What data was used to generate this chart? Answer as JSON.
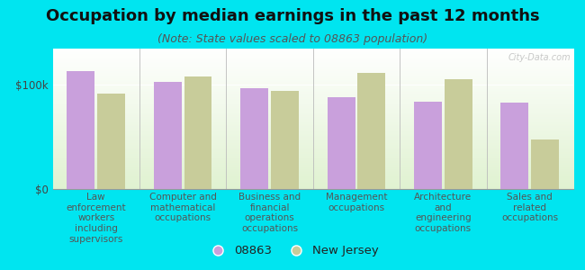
{
  "title": "Occupation by median earnings in the past 12 months",
  "subtitle": "(Note: State values scaled to 08863 population)",
  "categories": [
    "Law\nenforcement\nworkers\nincluding\nsupervisors",
    "Computer and\nmathematical\noccupations",
    "Business and\nfinancial\noperations\noccupations",
    "Management\noccupations",
    "Architecture\nand\nengineering\noccupations",
    "Sales and\nrelated\noccupations"
  ],
  "values_08863": [
    113000,
    103000,
    97000,
    88000,
    84000,
    83000
  ],
  "values_nj": [
    92000,
    108000,
    94000,
    112000,
    106000,
    48000
  ],
  "color_08863": "#c9a0dc",
  "color_nj": "#c8cc9a",
  "background_outer": "#00e5f0",
  "ytick_labels": [
    "$0",
    "$100k"
  ],
  "ytick_values": [
    0,
    100000
  ],
  "ylim": [
    0,
    135000
  ],
  "legend_label_08863": "08863",
  "legend_label_nj": "New Jersey",
  "watermark": "City-Data.com",
  "title_fontsize": 13,
  "subtitle_fontsize": 9,
  "tick_fontsize": 8.5,
  "legend_fontsize": 9.5,
  "cat_fontsize": 7.5
}
